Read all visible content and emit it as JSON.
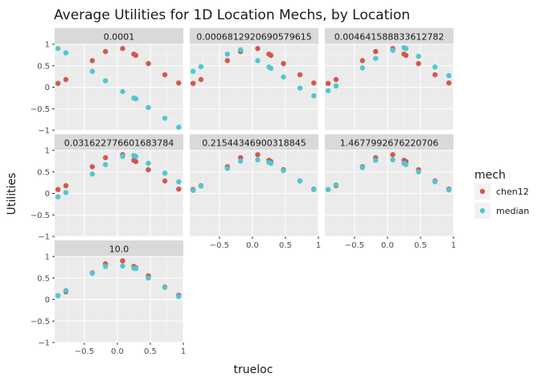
{
  "chart_data": {
    "type": "scatter",
    "title": "Average Utilities for 1D Location Mechs, by Location",
    "xlabel": "trueloc",
    "ylabel": "Utilities",
    "xlim": [
      -0.95,
      1.0
    ],
    "ylim": [
      -1.0,
      1.0
    ],
    "x_ticks": [
      -0.5,
      0.0,
      0.5,
      1.0
    ],
    "x_tick_labels": [
      "−0.5",
      "0.0",
      "0.5",
      "1"
    ],
    "y_ticks": [
      -1.0,
      -0.5,
      0.0,
      0.5,
      1.0
    ],
    "y_tick_labels": [
      "−1",
      "−0.5",
      "0",
      "0.5",
      "1"
    ],
    "grid": true,
    "legend": {
      "title": "mech",
      "position": "right"
    },
    "series_colors": {
      "chen12": "#d2584b",
      "median": "#4fc7d0"
    },
    "facets": [
      {
        "label": "0.0001",
        "series": [
          {
            "name": "chen12",
            "x": [
              -0.9,
              -0.78,
              -0.38,
              -0.18,
              0.08,
              0.25,
              0.28,
              0.47,
              0.72,
              0.93
            ],
            "y": [
              0.09,
              0.18,
              0.62,
              0.83,
              0.9,
              0.77,
              0.74,
              0.55,
              0.29,
              0.1
            ]
          },
          {
            "name": "median",
            "x": [
              -0.9,
              -0.78,
              -0.38,
              -0.18,
              0.08,
              0.25,
              0.28,
              0.47,
              0.72,
              0.93
            ],
            "y": [
              0.9,
              0.8,
              0.37,
              0.15,
              -0.1,
              -0.25,
              -0.27,
              -0.47,
              -0.72,
              -0.93
            ]
          }
        ]
      },
      {
        "label": "0.0006812920690579615",
        "series": [
          {
            "name": "chen12",
            "x": [
              -0.9,
              -0.78,
              -0.38,
              -0.18,
              0.08,
              0.25,
              0.28,
              0.47,
              0.72,
              0.93
            ],
            "y": [
              0.09,
              0.18,
              0.62,
              0.83,
              0.9,
              0.77,
              0.74,
              0.55,
              0.29,
              0.1
            ]
          },
          {
            "name": "median",
            "x": [
              -0.9,
              -0.78,
              -0.38,
              -0.18,
              0.08,
              0.25,
              0.28,
              0.47,
              0.72,
              0.93
            ],
            "y": [
              0.37,
              0.48,
              0.77,
              0.87,
              0.62,
              0.47,
              0.44,
              0.24,
              -0.02,
              -0.2
            ]
          }
        ]
      },
      {
        "label": "0.004641588833612782",
        "series": [
          {
            "name": "chen12",
            "x": [
              -0.9,
              -0.78,
              -0.38,
              -0.18,
              0.08,
              0.25,
              0.28,
              0.47,
              0.72,
              0.93
            ],
            "y": [
              0.09,
              0.18,
              0.62,
              0.83,
              0.9,
              0.77,
              0.74,
              0.55,
              0.29,
              0.1
            ]
          },
          {
            "name": "median",
            "x": [
              -0.9,
              -0.78,
              -0.38,
              -0.18,
              0.08,
              0.25,
              0.28,
              0.47,
              0.72,
              0.93
            ],
            "y": [
              -0.08,
              0.03,
              0.45,
              0.67,
              0.86,
              0.92,
              0.9,
              0.72,
              0.47,
              0.27
            ]
          }
        ]
      },
      {
        "label": "0.031622776601683784",
        "series": [
          {
            "name": "chen12",
            "x": [
              -0.9,
              -0.78,
              -0.38,
              -0.18,
              0.08,
              0.25,
              0.28,
              0.47,
              0.72,
              0.93
            ],
            "y": [
              0.09,
              0.18,
              0.62,
              0.83,
              0.9,
              0.77,
              0.74,
              0.55,
              0.29,
              0.1
            ]
          },
          {
            "name": "median",
            "x": [
              -0.9,
              -0.78,
              -0.38,
              -0.18,
              0.08,
              0.25,
              0.28,
              0.47,
              0.72,
              0.93
            ],
            "y": [
              -0.08,
              0.02,
              0.45,
              0.67,
              0.86,
              0.88,
              0.86,
              0.7,
              0.47,
              0.27
            ]
          }
        ]
      },
      {
        "label": "0.21544346900318845",
        "series": [
          {
            "name": "chen12",
            "x": [
              -0.9,
              -0.78,
              -0.38,
              -0.18,
              0.08,
              0.25,
              0.28,
              0.47,
              0.72,
              0.93
            ],
            "y": [
              0.09,
              0.18,
              0.62,
              0.83,
              0.9,
              0.77,
              0.74,
              0.55,
              0.29,
              0.1
            ]
          },
          {
            "name": "median",
            "x": [
              -0.9,
              -0.78,
              -0.38,
              -0.18,
              0.08,
              0.25,
              0.28,
              0.47,
              0.72,
              0.93
            ],
            "y": [
              0.07,
              0.17,
              0.58,
              0.75,
              0.78,
              0.72,
              0.7,
              0.53,
              0.29,
              0.09
            ]
          }
        ]
      },
      {
        "label": "1.4677992676220706",
        "series": [
          {
            "name": "chen12",
            "x": [
              -0.9,
              -0.78,
              -0.38,
              -0.18,
              0.08,
              0.25,
              0.28,
              0.47,
              0.72,
              0.93
            ],
            "y": [
              0.09,
              0.18,
              0.62,
              0.83,
              0.9,
              0.77,
              0.74,
              0.55,
              0.29,
              0.1
            ]
          },
          {
            "name": "median",
            "x": [
              -0.9,
              -0.78,
              -0.38,
              -0.18,
              0.08,
              0.25,
              0.28,
              0.47,
              0.72,
              0.93
            ],
            "y": [
              0.09,
              0.2,
              0.6,
              0.77,
              0.78,
              0.7,
              0.67,
              0.5,
              0.27,
              0.08
            ]
          }
        ]
      },
      {
        "label": "10.0",
        "series": [
          {
            "name": "chen12",
            "x": [
              -0.9,
              -0.78,
              -0.38,
              -0.18,
              0.08,
              0.25,
              0.28,
              0.47,
              0.72,
              0.93
            ],
            "y": [
              0.09,
              0.18,
              0.62,
              0.83,
              0.9,
              0.77,
              0.74,
              0.55,
              0.29,
              0.1
            ]
          },
          {
            "name": "median",
            "x": [
              -0.9,
              -0.78,
              -0.38,
              -0.18,
              0.08,
              0.25,
              0.28,
              0.47,
              0.72,
              0.93
            ],
            "y": [
              0.09,
              0.21,
              0.61,
              0.77,
              0.78,
              0.73,
              0.72,
              0.5,
              0.28,
              0.07
            ]
          }
        ]
      }
    ]
  }
}
